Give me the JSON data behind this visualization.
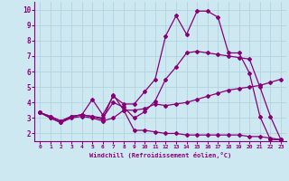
{
  "xlabel": "Windchill (Refroidissement éolien,°C)",
  "background_color": "#cde8f0",
  "grid_color": "#b0d4e0",
  "line_color": "#880077",
  "xlim": [
    -0.5,
    23.5
  ],
  "ylim": [
    1.5,
    10.5
  ],
  "xticks": [
    0,
    1,
    2,
    3,
    4,
    5,
    6,
    7,
    8,
    9,
    10,
    11,
    12,
    13,
    14,
    15,
    16,
    17,
    18,
    19,
    20,
    21,
    22,
    23
  ],
  "yticks": [
    2,
    3,
    4,
    5,
    6,
    7,
    8,
    9,
    10
  ],
  "line1_x": [
    0,
    1,
    2,
    3,
    4,
    5,
    6,
    7,
    8,
    9,
    10,
    11,
    12,
    13,
    14,
    15,
    16,
    17,
    18,
    19,
    20,
    21,
    22,
    23
  ],
  "line1_y": [
    3.35,
    3.0,
    2.7,
    3.1,
    3.2,
    3.1,
    2.9,
    4.5,
    3.5,
    3.5,
    3.6,
    3.9,
    3.8,
    3.9,
    4.0,
    4.2,
    4.4,
    4.6,
    4.8,
    4.9,
    5.0,
    5.1,
    5.3,
    5.5
  ],
  "line2_x": [
    0,
    1,
    2,
    3,
    4,
    5,
    6,
    7,
    8,
    9,
    10,
    11,
    12,
    13,
    14,
    15,
    16,
    17,
    18,
    19,
    20,
    21,
    22,
    23
  ],
  "line2_y": [
    3.35,
    3.1,
    2.8,
    3.1,
    3.2,
    4.2,
    3.2,
    4.4,
    3.9,
    3.9,
    4.7,
    5.5,
    8.3,
    9.6,
    8.4,
    9.9,
    9.9,
    9.5,
    7.2,
    7.2,
    5.9,
    3.1,
    1.6,
    1.6
  ],
  "line3_x": [
    0,
    1,
    2,
    3,
    4,
    5,
    6,
    7,
    8,
    9,
    10,
    11,
    12,
    13,
    14,
    15,
    16,
    17,
    18,
    19,
    20,
    21,
    22,
    23
  ],
  "line3_y": [
    3.35,
    3.0,
    2.7,
    3.0,
    3.1,
    3.0,
    2.8,
    3.0,
    3.5,
    2.2,
    2.2,
    2.1,
    2.0,
    2.0,
    1.9,
    1.9,
    1.9,
    1.9,
    1.9,
    1.9,
    1.8,
    1.8,
    1.7,
    1.6
  ],
  "line4_x": [
    0,
    1,
    2,
    3,
    4,
    5,
    6,
    7,
    8,
    9,
    10,
    11,
    12,
    13,
    14,
    15,
    16,
    17,
    18,
    19,
    20,
    21,
    22,
    23
  ],
  "line4_y": [
    3.35,
    3.1,
    2.8,
    3.1,
    3.2,
    3.1,
    3.0,
    4.0,
    3.7,
    3.0,
    3.4,
    4.1,
    5.5,
    6.3,
    7.2,
    7.3,
    7.2,
    7.1,
    7.0,
    6.9,
    6.8,
    5.0,
    3.1,
    1.6
  ]
}
